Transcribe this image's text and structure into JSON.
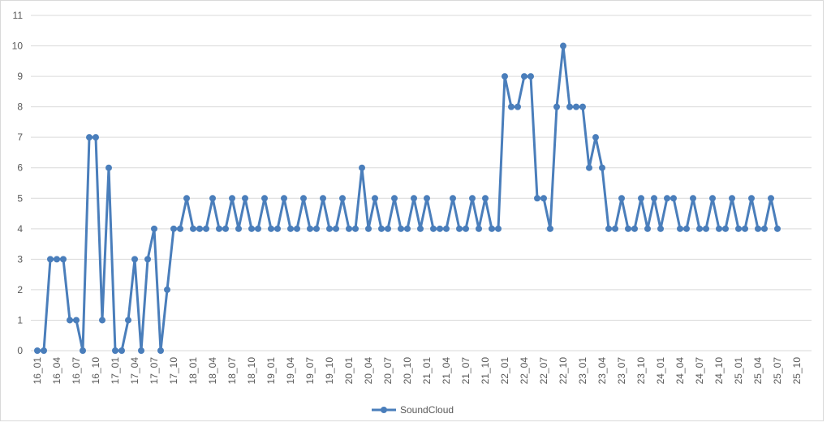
{
  "chart_data": {
    "type": "line",
    "categories": [
      "16_01",
      null,
      null,
      "16_04",
      null,
      null,
      "16_07",
      null,
      null,
      "16_10",
      null,
      null,
      "17_01",
      null,
      null,
      "17_04",
      null,
      null,
      "17_07",
      null,
      null,
      "17_10",
      null,
      null,
      "18_01",
      null,
      null,
      "18_04",
      null,
      null,
      "18_07",
      null,
      null,
      "18_10",
      null,
      null,
      "19_01",
      null,
      null,
      "19_04",
      null,
      null,
      "19_07",
      null,
      null,
      "19_10",
      null,
      null,
      "20_01",
      null,
      null,
      "20_04",
      null,
      null,
      "20_07",
      null,
      null,
      "20_10",
      null,
      null,
      "21_01",
      null,
      null,
      "21_04",
      null,
      null,
      "21_07",
      null,
      null,
      "21_10",
      null,
      null,
      "22_01",
      null,
      null,
      "22_04",
      null,
      null,
      "22_07",
      null,
      null,
      "22_10",
      null,
      null,
      "23_01",
      null,
      null,
      "23_04",
      null,
      null,
      "23_07",
      null,
      null,
      "23_10",
      null,
      null,
      "24_01",
      null,
      null,
      "24_04",
      null,
      null,
      "24_07",
      null,
      null,
      "24_10",
      null,
      null,
      "25_01",
      null,
      null,
      "25_04",
      null,
      null,
      "25_07",
      null,
      null,
      "25_10"
    ],
    "series": [
      {
        "name": "SoundCloud",
        "color": "#4a7ebb",
        "values": [
          0,
          0,
          3,
          3,
          3,
          1,
          1,
          0,
          7,
          7,
          1,
          6,
          0,
          0,
          1,
          3,
          0,
          3,
          4,
          0,
          2,
          4,
          4,
          5,
          4,
          4,
          4,
          5,
          4,
          4,
          5,
          4,
          5,
          4,
          4,
          5,
          4,
          4,
          5,
          4,
          4,
          5,
          4,
          4,
          5,
          4,
          4,
          5,
          4,
          4,
          6,
          4,
          5,
          4,
          4,
          5,
          4,
          4,
          5,
          4,
          5,
          4,
          4,
          4,
          5,
          4,
          4,
          5,
          4,
          5,
          4,
          4,
          9,
          8,
          8,
          9,
          9,
          5,
          5,
          4,
          8,
          10,
          8,
          8,
          8,
          6,
          7,
          6,
          4,
          4,
          5,
          4,
          4,
          5,
          4,
          5,
          4,
          5,
          5,
          4,
          4,
          5,
          4,
          4,
          5,
          4,
          4,
          5,
          4,
          4,
          5,
          4,
          4,
          5,
          4,
          null,
          null,
          null
        ]
      }
    ],
    "ylim": [
      0,
      11
    ],
    "yticks": [
      0,
      1,
      2,
      3,
      4,
      5,
      6,
      7,
      8,
      9,
      10,
      11
    ],
    "grid": true,
    "legend": "bottom"
  }
}
